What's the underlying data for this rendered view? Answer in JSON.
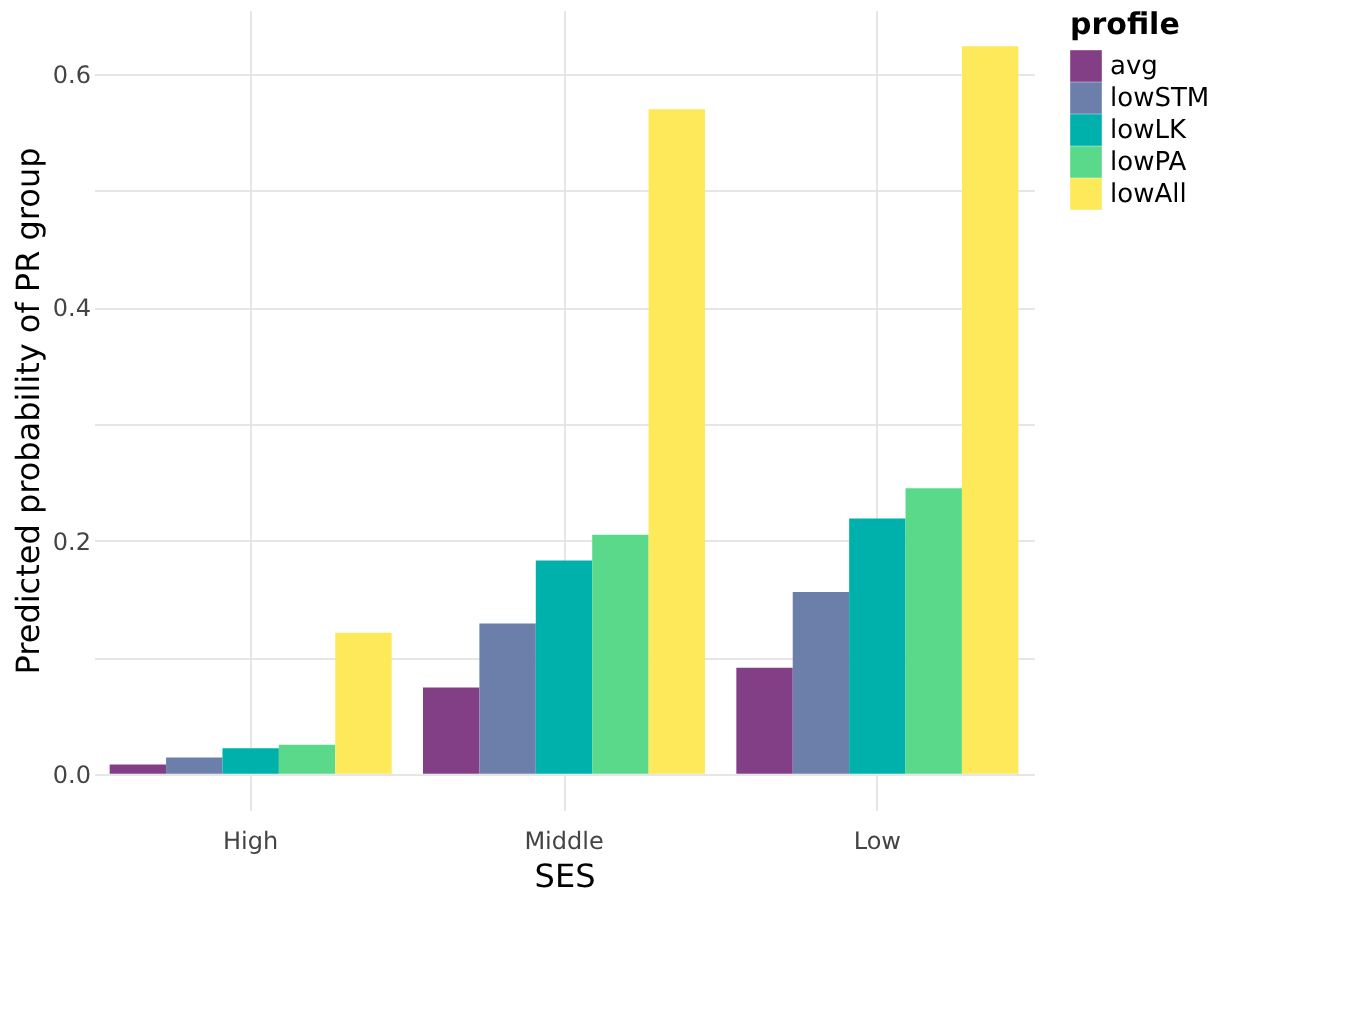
{
  "chart_data": {
    "type": "bar",
    "xlabel": "SES",
    "ylabel": "Predicted probability of PR group",
    "legend_title": "profile",
    "categories": [
      "High",
      "Middle",
      "Low"
    ],
    "series": [
      {
        "name": "avg",
        "color": "#833f86",
        "values": [
          0.008,
          0.074,
          0.091
        ]
      },
      {
        "name": "lowSTM",
        "color": "#6b7faa",
        "values": [
          0.014,
          0.129,
          0.156
        ]
      },
      {
        "name": "lowLK",
        "color": "#00b1ab",
        "values": [
          0.022,
          0.183,
          0.219
        ]
      },
      {
        "name": "lowPA",
        "color": "#5bd98a",
        "values": [
          0.025,
          0.205,
          0.245
        ]
      },
      {
        "name": "lowAll",
        "color": "#fde95a",
        "values": [
          0.121,
          0.57,
          0.624
        ]
      }
    ],
    "ylim": [
      -0.031,
      0.655
    ],
    "yticks": [
      {
        "value": 0,
        "label": "0.0"
      },
      {
        "value": 0.1,
        "label": null
      },
      {
        "value": 0.2,
        "label": "0.2"
      },
      {
        "value": 0.3,
        "label": null
      },
      {
        "value": 0.4,
        "label": "0.4"
      },
      {
        "value": 0.5,
        "label": null
      },
      {
        "value": 0.6,
        "label": "0.6"
      }
    ],
    "grid": true,
    "legend": "right"
  }
}
